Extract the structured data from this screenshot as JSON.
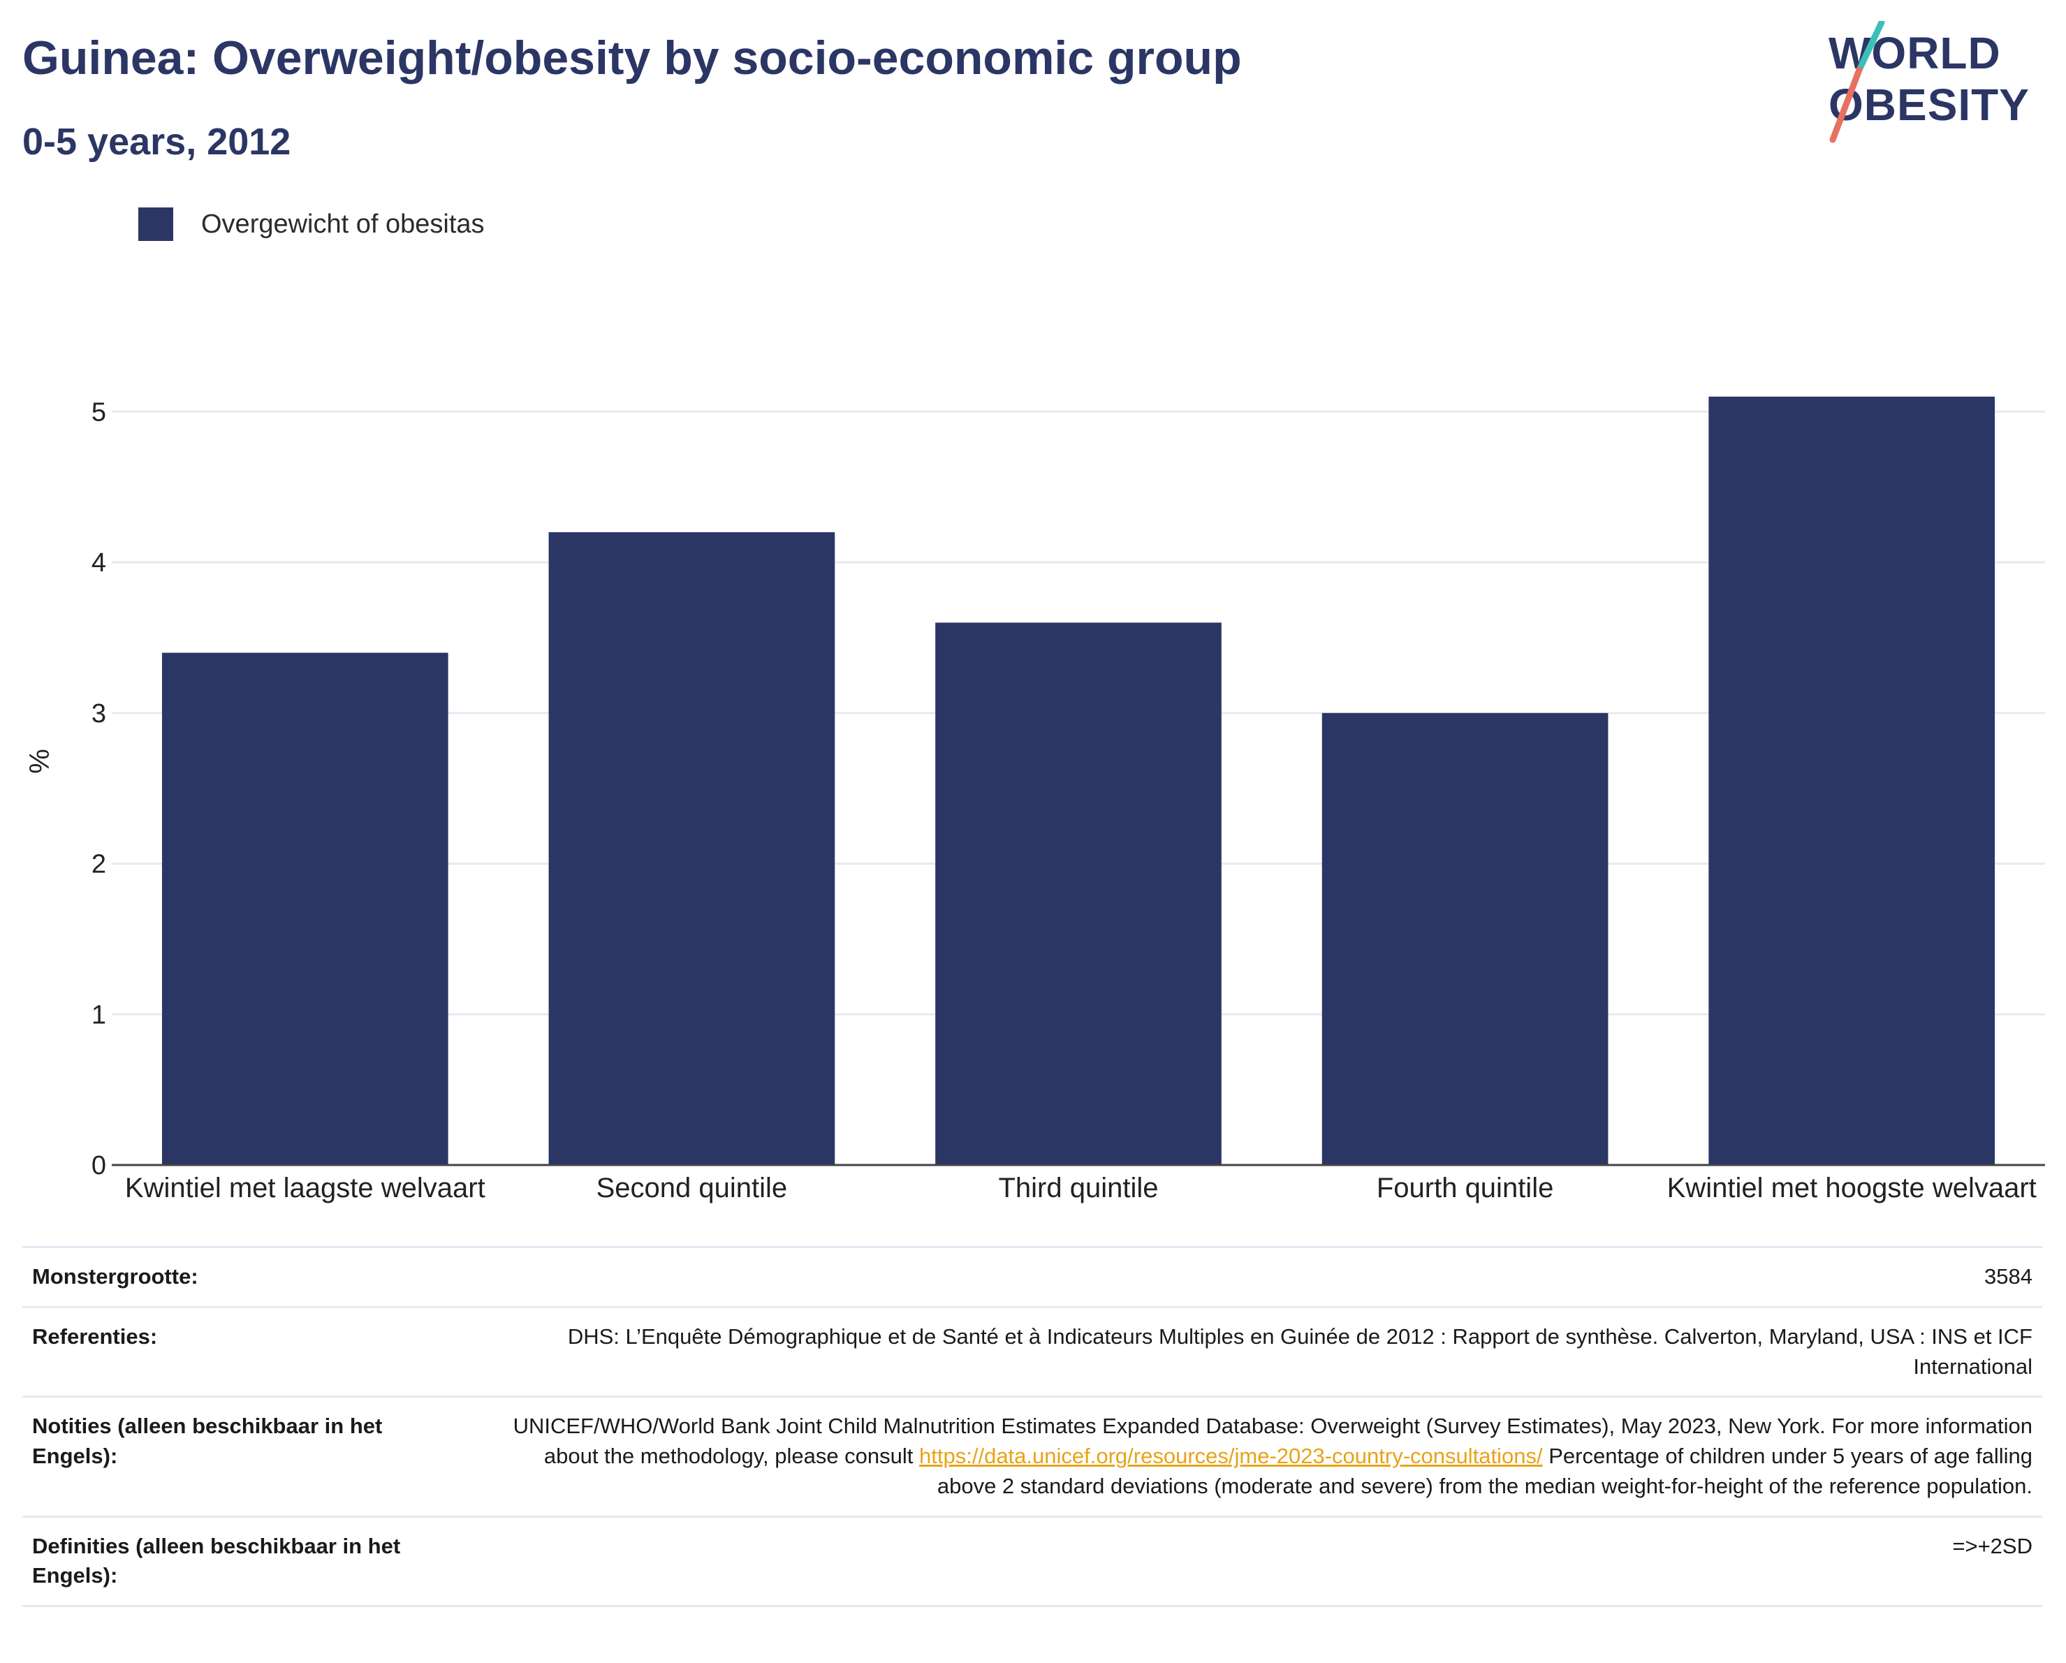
{
  "header": {
    "title": "Guinea: Overweight/obesity by socio-economic group",
    "subtitle": "0-5 years, 2012"
  },
  "logo": {
    "line1": "WORLD",
    "line2": "OBESITY",
    "colors": {
      "text": "#2b3665",
      "slash_top": "#3bbfb7",
      "slash_bottom": "#e8705f"
    }
  },
  "legend": {
    "items": [
      {
        "label": "Overgewicht of obesitas",
        "color": "#2b3665"
      }
    ]
  },
  "chart_data": {
    "type": "bar",
    "categories": [
      "Kwintiel met laagste welvaart",
      "Second quintile",
      "Third quintile",
      "Fourth quintile",
      "Kwintiel met hoogste welvaart"
    ],
    "series": [
      {
        "name": "Overgewicht of obesitas",
        "values": [
          3.4,
          4.2,
          3.6,
          3.0,
          5.1
        ],
        "color": "#2b3665"
      }
    ],
    "ylabel": "%",
    "xlabel": "",
    "ylim": [
      0,
      5.6
    ],
    "yticks": [
      0,
      1,
      2,
      3,
      4,
      5
    ],
    "grid": true,
    "legend_position": "top-left"
  },
  "info": {
    "rows": [
      {
        "key": "Monstergrootte:",
        "value": "3584"
      },
      {
        "key": "Referenties:",
        "value": "DHS: L’Enquête Démographique et de Santé et à Indicateurs Multiples en Guinée de 2012 : Rapport de synthèse. Calverton, Maryland, USA : INS et ICF International"
      },
      {
        "key": "Notities (alleen beschikbaar in het Engels):",
        "value_before": "UNICEF/WHO/World Bank Joint Child Malnutrition Estimates Expanded Database: Overweight (Survey Estimates), May 2023, New York. For more information about the methodology, please consult ",
        "link": "https://data.unicef.org/resources/jme-2023-country-consultations/",
        "value_after": " Percentage of children under 5 years of age falling above 2 standard deviations (moderate and severe) from the median weight-for-height of the reference population."
      },
      {
        "key": "Definities (alleen beschikbaar in het Engels):",
        "value": "=>+2SD"
      }
    ]
  }
}
